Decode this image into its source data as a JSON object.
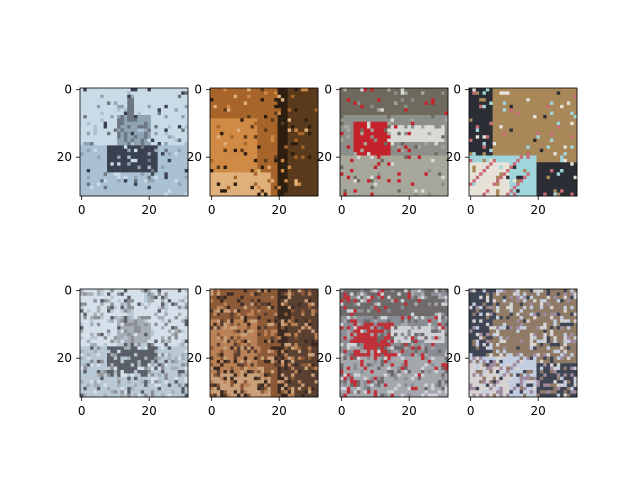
{
  "chart_data": {
    "type": "image-grid",
    "rows": 2,
    "cols": 4,
    "panels": [
      {
        "row": 0,
        "col": 0,
        "content": "ship on water (original)",
        "palette": [
          "#c9dbe6",
          "#a9c1d3",
          "#3a4150",
          "#6c7680",
          "#8fa3b3"
        ]
      },
      {
        "row": 0,
        "col": 1,
        "content": "cat face close-up (original)",
        "palette": [
          "#2e1e10",
          "#a8652a",
          "#d08a45",
          "#5a3a1c",
          "#e0b07a"
        ]
      },
      {
        "row": 0,
        "col": 2,
        "content": "red truck on road (original)",
        "palette": [
          "#8c8f8a",
          "#c4232b",
          "#d8dad6",
          "#6f6a5e",
          "#a7a79c"
        ]
      },
      {
        "row": 0,
        "col": 3,
        "content": "cat with flowers (original)",
        "palette": [
          "#2b2f35",
          "#a88758",
          "#9fd6dc",
          "#e6e2d8",
          "#c96a77"
        ]
      },
      {
        "row": 1,
        "col": 0,
        "content": "ship on water (reconstruction)",
        "palette": [
          "#d5e0ea",
          "#b8c8d5",
          "#5a5f68",
          "#8d8f95",
          "#a5aeb5"
        ]
      },
      {
        "row": 1,
        "col": 1,
        "content": "cat face close-up (reconstruction)",
        "palette": [
          "#3d2b22",
          "#8d5a38",
          "#b98155",
          "#5a4030",
          "#c8a07a"
        ]
      },
      {
        "row": 1,
        "col": 2,
        "content": "red truck on road (reconstruction)",
        "palette": [
          "#8b8d95",
          "#c03038",
          "#cfd2d6",
          "#6e6b6a",
          "#a4a8ad"
        ]
      },
      {
        "row": 1,
        "col": 3,
        "content": "cat with flowers (reconstruction)",
        "palette": [
          "#3f4554",
          "#8f7b66",
          "#c2cde0",
          "#d7d3d3",
          "#a08aa0"
        ]
      }
    ],
    "xlim": [
      0,
      31
    ],
    "ylim": [
      0,
      31
    ],
    "x_ticks": [
      "0",
      "20"
    ],
    "y_ticks": [
      "0",
      "20"
    ],
    "title": "",
    "xlabel": "",
    "ylabel": ""
  }
}
